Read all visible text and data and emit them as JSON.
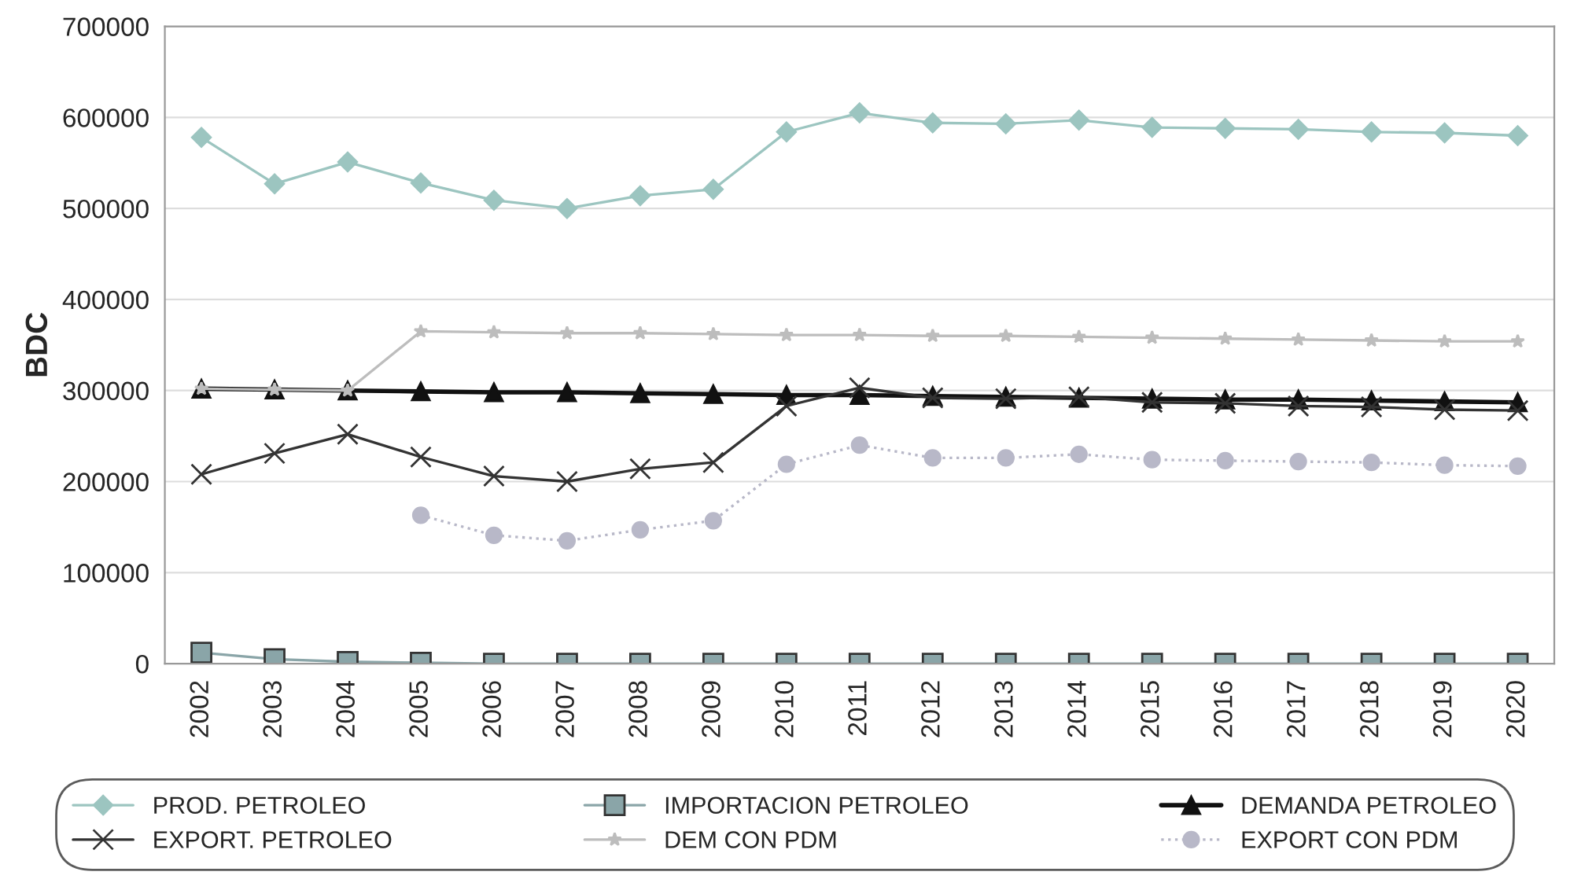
{
  "chart_data": {
    "type": "line",
    "ylabel": "BDC",
    "categories": [
      "2002",
      "2003",
      "2004",
      "2005",
      "2006",
      "2007",
      "2008",
      "2009",
      "2010",
      "2011",
      "2012",
      "2013",
      "2014",
      "2015",
      "2016",
      "2017",
      "2018",
      "2019",
      "2020"
    ],
    "ylim": [
      0,
      700000
    ],
    "yticks": [
      0,
      100000,
      200000,
      300000,
      400000,
      500000,
      600000,
      700000
    ],
    "grid": "y",
    "legend": "bottom",
    "series": [
      {
        "name": "PROD. PETROLEO",
        "color": "#9cc5c0",
        "marker": "diamond",
        "line_style": "solid",
        "values": [
          578000,
          527000,
          551000,
          528000,
          509000,
          500000,
          514000,
          521000,
          584000,
          605000,
          594000,
          593000,
          597000,
          589000,
          588000,
          587000,
          584000,
          583000,
          580000
        ]
      },
      {
        "name": "IMPORTACION PETROLEO",
        "color": "#8aa5a8",
        "marker": "square",
        "line_style": "solid",
        "values": [
          12000,
          5000,
          2000,
          1000,
          0,
          0,
          0,
          0,
          0,
          0,
          0,
          0,
          0,
          0,
          0,
          0,
          0,
          0,
          0
        ]
      },
      {
        "name": "DEMANDA PETROLEO",
        "color": "#111111",
        "marker": "triangle",
        "line_style": "solid",
        "values": [
          302000,
          301000,
          300000,
          299000,
          298000,
          298000,
          297000,
          296000,
          295000,
          295000,
          294000,
          293000,
          292000,
          291000,
          290000,
          290000,
          289000,
          288000,
          287000
        ]
      },
      {
        "name": "EXPORT. PETROLEO",
        "color": "#333333",
        "marker": "cross",
        "line_style": "solid",
        "values": [
          208000,
          231000,
          252000,
          227000,
          206000,
          200000,
          214000,
          221000,
          283000,
          303000,
          292000,
          291000,
          293000,
          287000,
          286000,
          283000,
          282000,
          279000,
          278000
        ]
      },
      {
        "name": "DEM CON PDM",
        "color": "#bdbdbd",
        "marker": "star",
        "line_style": "solid",
        "values": [
          302000,
          301000,
          300000,
          365000,
          364000,
          363000,
          363000,
          362000,
          361000,
          361000,
          360000,
          360000,
          359000,
          358000,
          357000,
          356000,
          355000,
          354000,
          354000
        ]
      },
      {
        "name": "EXPORT CON PDM",
        "color": "#b8b8c8",
        "marker": "circle",
        "line_style": "dotted",
        "values": [
          null,
          null,
          null,
          163000,
          141000,
          135000,
          147000,
          157000,
          219000,
          240000,
          226000,
          226000,
          230000,
          224000,
          223000,
          222000,
          221000,
          218000,
          217000
        ]
      }
    ]
  }
}
